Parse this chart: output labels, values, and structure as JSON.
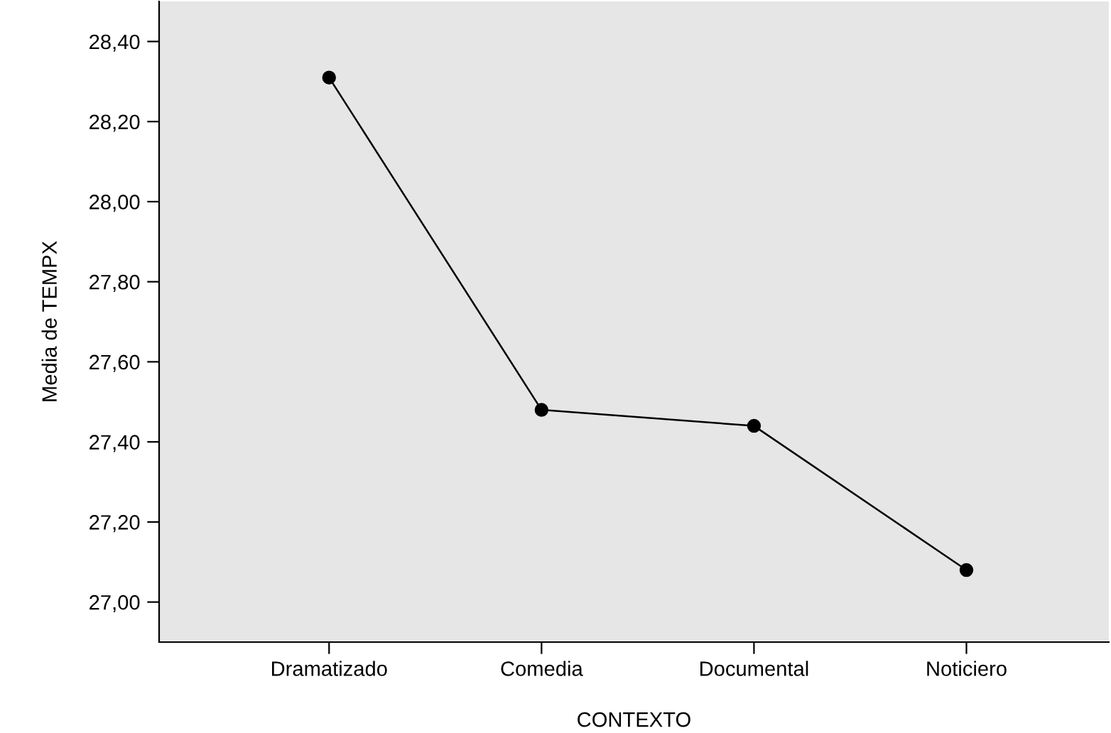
{
  "chart_data": {
    "type": "line",
    "xlabel": "CONTEXTO",
    "ylabel": "Media de TEMPX",
    "categories": [
      "Dramatizado",
      "Comedia",
      "Documental",
      "Noticiero"
    ],
    "series": [
      {
        "color": "#000000",
        "values": [
          28.31,
          27.48,
          27.44,
          27.08
        ]
      }
    ],
    "marker": "circle",
    "line_style": "solid",
    "grid": false,
    "legend": false,
    "ylim": [
      26.9,
      28.5
    ],
    "yticks": [
      {
        "value": 27.0,
        "label": "27,00"
      },
      {
        "value": 27.2,
        "label": "27,20"
      },
      {
        "value": 27.4,
        "label": "27,40"
      },
      {
        "value": 27.6,
        "label": "27,60"
      },
      {
        "value": 27.8,
        "label": "27,80"
      },
      {
        "value": 28.0,
        "label": "28,00"
      },
      {
        "value": 28.2,
        "label": "28,20"
      },
      {
        "value": 28.4,
        "label": "28,40"
      }
    ]
  }
}
